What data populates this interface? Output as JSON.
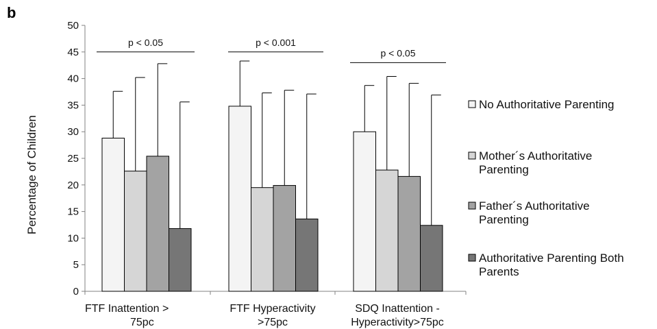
{
  "panel_label": "b",
  "chart_data": {
    "type": "bar",
    "title": "",
    "xlabel": "",
    "ylabel": "Percentage  of Children",
    "ylim": [
      0,
      50
    ],
    "yticks": [
      0,
      5,
      10,
      15,
      20,
      25,
      30,
      35,
      40,
      45,
      50
    ],
    "grid": false,
    "legend_position": "right",
    "categories": [
      [
        "FTF      Inattention >",
        "75pc"
      ],
      [
        "FTF Hyperactivity",
        ">75pc"
      ],
      [
        "SDQ Inattention -",
        "Hyperactivity>75pc"
      ]
    ],
    "series": [
      {
        "name": [
          "No Authoritative Parenting"
        ],
        "color": "#f4f4f4",
        "values": [
          28.8,
          34.8,
          30.0
        ],
        "error_upper": [
          37.6,
          43.3,
          38.7
        ]
      },
      {
        "name": [
          "Mother´s Authoritative",
          "Parenting"
        ],
        "color": "#d6d6d6",
        "values": [
          22.6,
          19.5,
          22.8
        ],
        "error_upper": [
          40.2,
          37.3,
          40.4
        ]
      },
      {
        "name": [
          "Father´s Authoritative",
          "Parenting"
        ],
        "color": "#a3a3a3",
        "values": [
          25.4,
          19.9,
          21.6
        ],
        "error_upper": [
          42.8,
          37.8,
          39.1
        ]
      },
      {
        "name": [
          "Authoritative Parenting Both",
          "Parents"
        ],
        "color": "#767676",
        "values": [
          11.8,
          13.6,
          12.4
        ],
        "error_upper": [
          35.6,
          37.1,
          36.9
        ]
      }
    ],
    "annotations": [
      {
        "text": "p < 0.05",
        "category": 0,
        "y": 45.0
      },
      {
        "text": "p < 0.001",
        "category": 1,
        "y": 45.0
      },
      {
        "text": "p < 0.05",
        "category": 2,
        "y": 43.0
      }
    ]
  }
}
